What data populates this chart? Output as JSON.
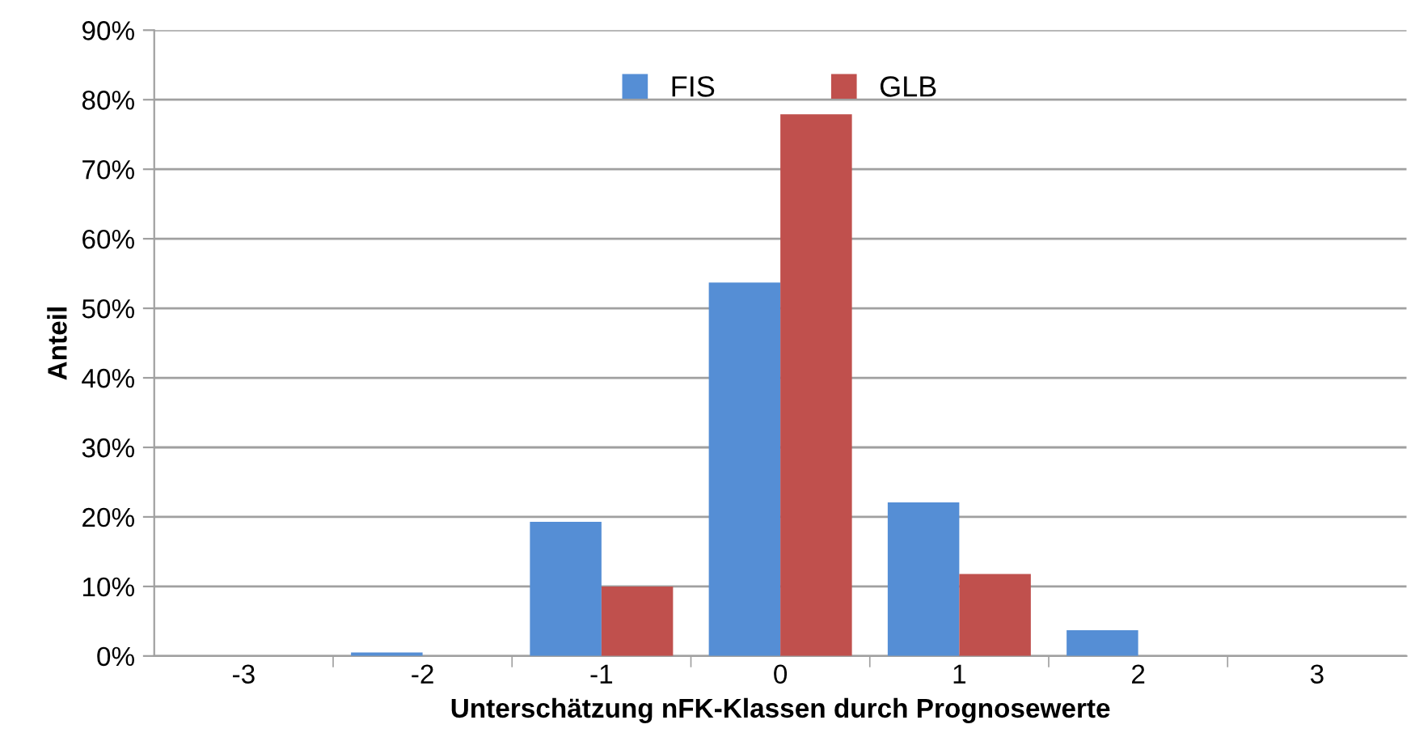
{
  "chart_data": {
    "type": "bar",
    "xlabel": "Unterschätzung nFK-Klassen durch Prognosewerte",
    "ylabel": "Anteil",
    "categories": [
      "-3",
      "-2",
      "-1",
      "0",
      "1",
      "2",
      "3"
    ],
    "series": [
      {
        "name": "FIS",
        "color": "#558ed5",
        "values": [
          0,
          0.5,
          19.3,
          53.7,
          22.1,
          3.7,
          0
        ]
      },
      {
        "name": "GLB",
        "color": "#c0504d",
        "values": [
          0,
          0,
          10,
          77.9,
          11.8,
          0,
          0
        ]
      }
    ],
    "ylim": [
      0,
      90
    ],
    "yticks": [
      {
        "value": 0,
        "label": "0%"
      },
      {
        "value": 10,
        "label": "10%"
      },
      {
        "value": 20,
        "label": "20%"
      },
      {
        "value": 30,
        "label": "30%"
      },
      {
        "value": 40,
        "label": "40%"
      },
      {
        "value": 50,
        "label": "50%"
      },
      {
        "value": 60,
        "label": "60%"
      },
      {
        "value": 70,
        "label": "70%"
      },
      {
        "value": 80,
        "label": "80%"
      },
      {
        "value": 90,
        "label": "90%"
      }
    ],
    "grid": "y",
    "legend": "top"
  }
}
